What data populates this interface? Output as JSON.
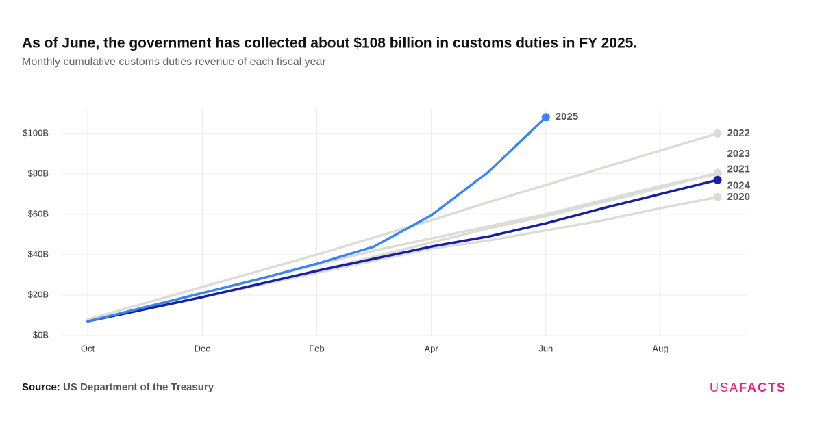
{
  "chart_data": {
    "type": "line",
    "title": "As of June, the government has collected about $108 billion in customs duties in FY 2025.",
    "subtitle": "Monthly cumulative customs duties revenue of each fiscal year",
    "categories": [
      "Oct",
      null,
      "Dec",
      null,
      "Feb",
      null,
      "Apr",
      null,
      "Jun",
      null,
      "Aug",
      null
    ],
    "series": [
      {
        "name": "2020",
        "color": "#dcdcd7",
        "values": [
          7,
          13,
          19,
          25,
          31,
          37,
          43,
          47,
          52,
          57,
          63,
          68.5
        ]
      },
      {
        "name": "2021",
        "color": "#dcdcd7",
        "values": [
          7,
          13,
          19,
          25,
          32,
          39,
          46,
          53,
          59,
          66,
          73,
          80.5
        ]
      },
      {
        "name": "2022",
        "color": "#dcdcd7",
        "values": [
          8,
          16,
          24,
          32,
          40,
          48.5,
          57,
          66,
          74.5,
          83,
          91.5,
          100
        ]
      },
      {
        "name": "2023",
        "color": "#dcdcd7",
        "values": [
          7,
          14,
          21,
          28,
          35,
          42,
          48,
          54,
          60,
          67,
          74,
          80
        ]
      },
      {
        "name": "2024",
        "color": "#1a1fa0",
        "values": [
          7,
          13,
          19,
          25.5,
          32,
          38,
          44,
          49,
          55.5,
          63,
          70,
          77
        ]
      },
      {
        "name": "2025",
        "color": "#3a86f0",
        "values": [
          7,
          14,
          21,
          28,
          35.5,
          44,
          59.5,
          81,
          108,
          null,
          null,
          null
        ]
      }
    ],
    "ylim": [
      0,
      112.5
    ],
    "yticks": [
      {
        "value": 0,
        "label": "$0B"
      },
      {
        "value": 20,
        "label": "$20B"
      },
      {
        "value": 40,
        "label": "$40B"
      },
      {
        "value": 60,
        "label": "$60B"
      },
      {
        "value": 80,
        "label": "$80B"
      },
      {
        "value": 100,
        "label": "$100B"
      }
    ],
    "grid": true,
    "source_label": "Source:",
    "source": "US Department of the Treasury",
    "logo": [
      "USA",
      "FACTS"
    ]
  }
}
